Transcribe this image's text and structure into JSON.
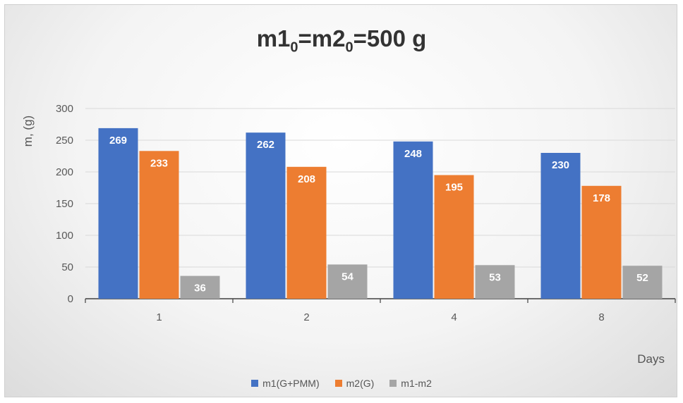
{
  "chart_data": {
    "type": "bar",
    "title_main": "m1",
    "title_sub1": "0",
    "title_mid": "=m2",
    "title_sub2": "0",
    "title_end": "=500 g",
    "ylabel": "m, (g)",
    "xlabel": "Days",
    "categories": [
      "1",
      "2",
      "4",
      "8"
    ],
    "ylim": [
      0,
      300
    ],
    "yticks": [
      0,
      50,
      100,
      150,
      200,
      250,
      300
    ],
    "grid": true,
    "legend_position": "bottom",
    "series": [
      {
        "name": "m1(G+PMM)",
        "color": "#4472c4",
        "values": [
          269,
          262,
          248,
          230
        ]
      },
      {
        "name": "m2(G)",
        "color": "#ed7d31",
        "values": [
          233,
          208,
          195,
          178
        ]
      },
      {
        "name": "m1-m2",
        "color": "#a5a5a5",
        "values": [
          36,
          54,
          53,
          52
        ]
      }
    ]
  }
}
